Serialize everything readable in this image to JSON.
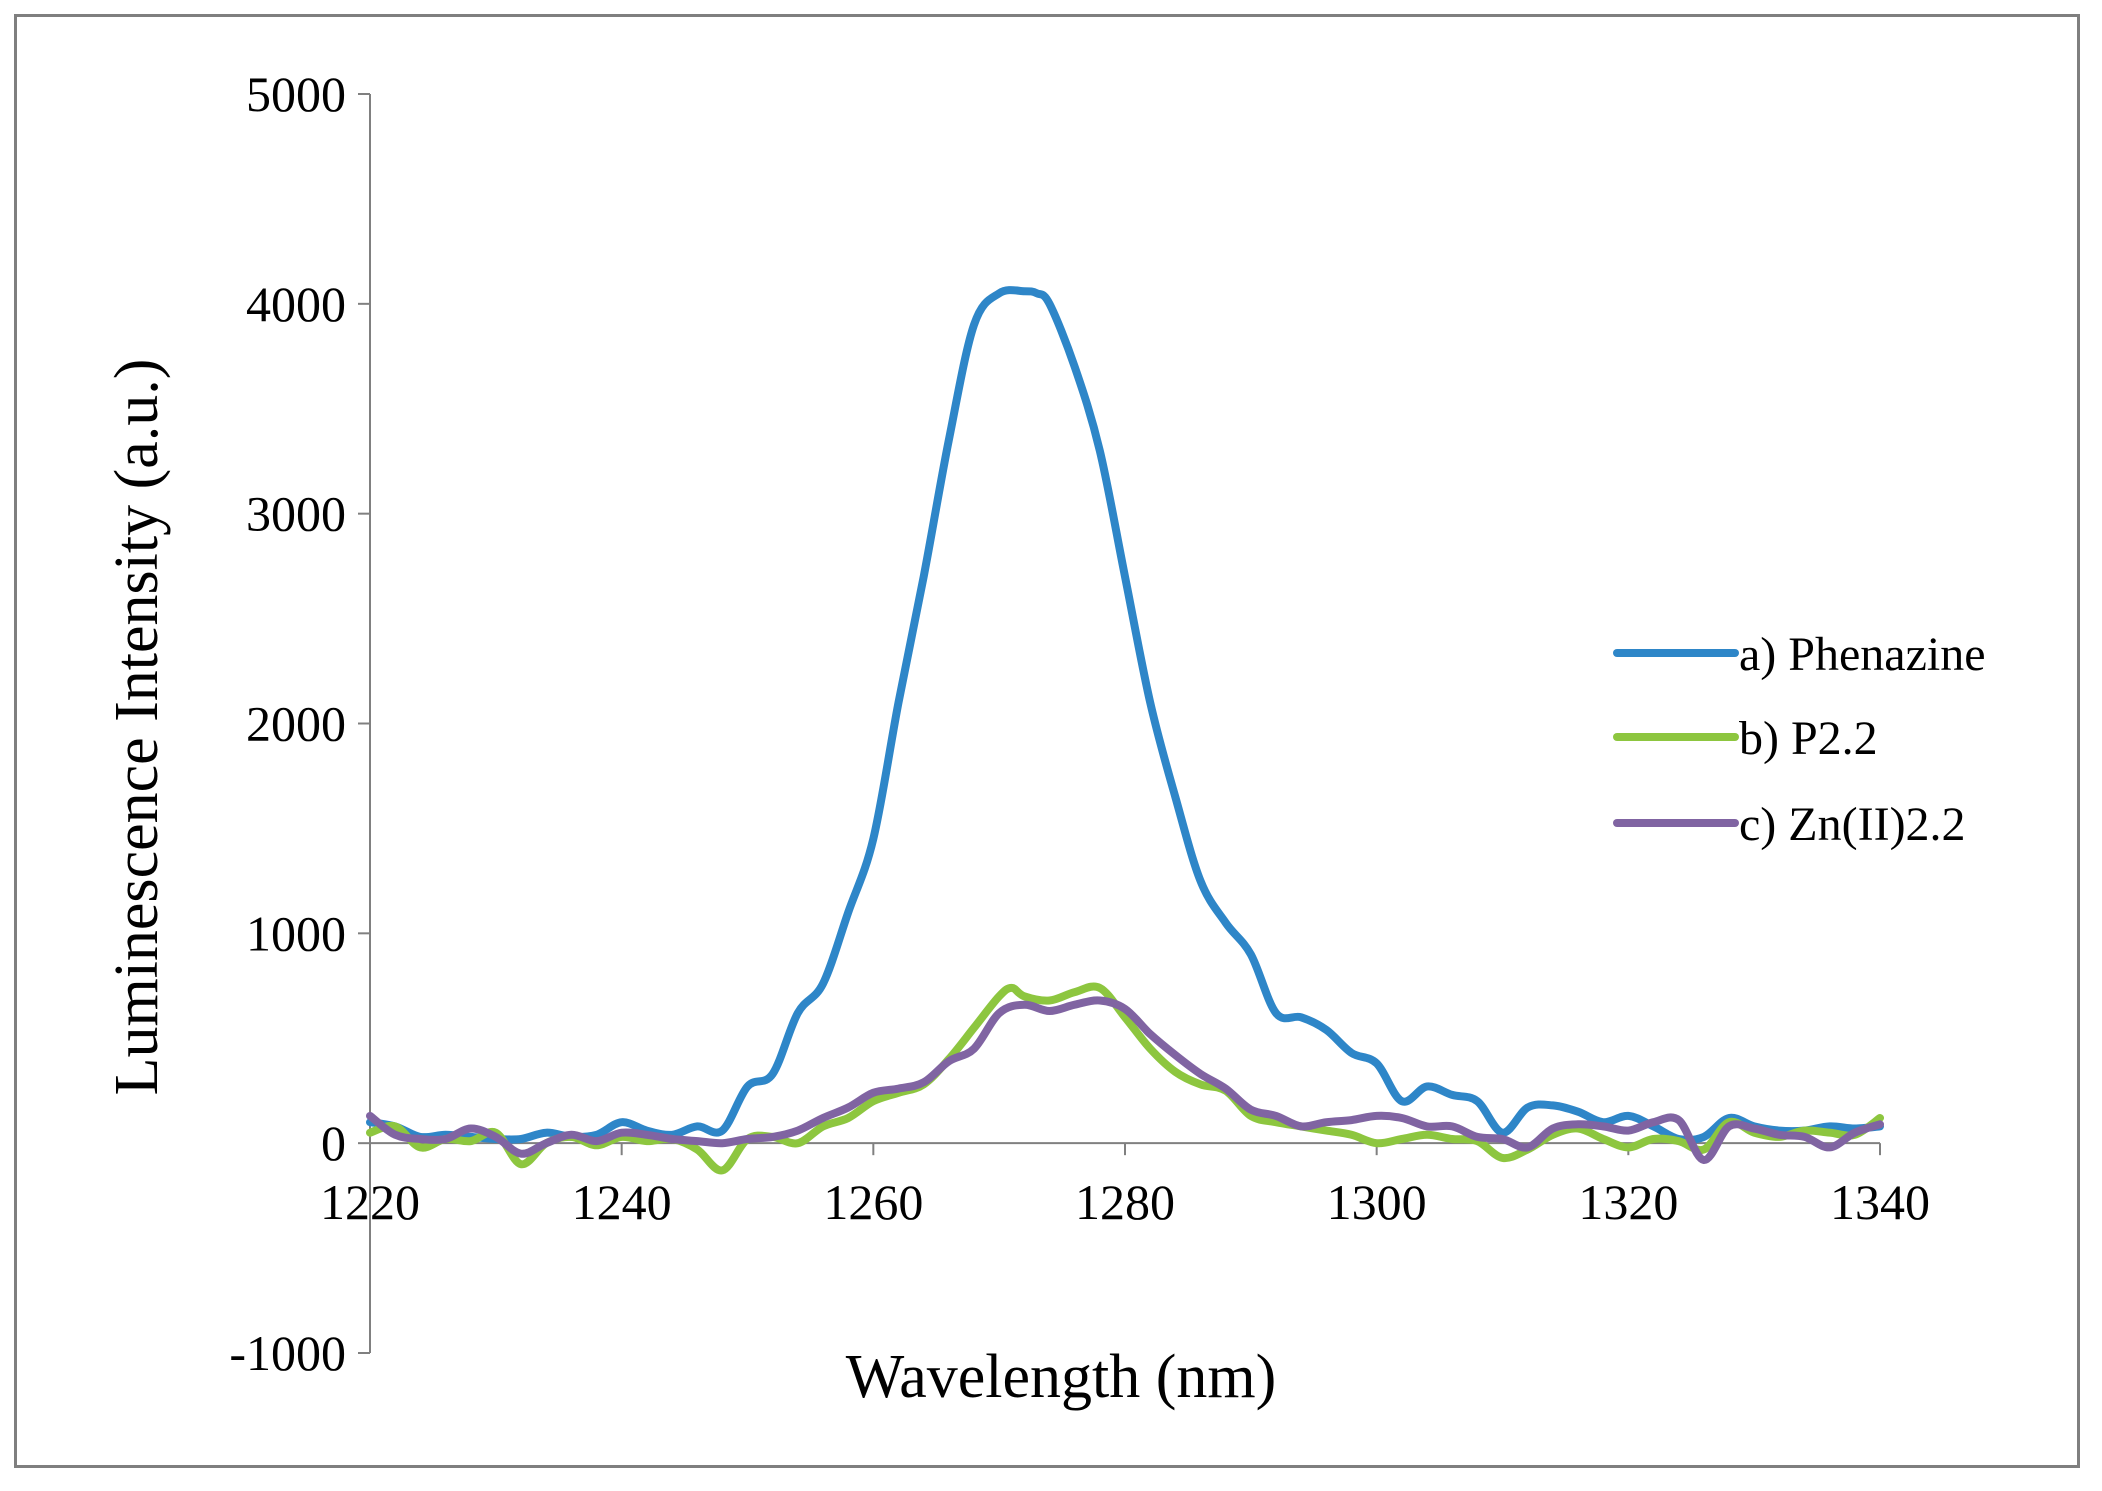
{
  "chart_data": {
    "type": "line",
    "title": "",
    "xlabel": "Wavelength (nm)",
    "ylabel": "Luminescence Intensity (a.u.)",
    "xlim": [
      1220,
      1340
    ],
    "ylim": [
      -1000,
      5000
    ],
    "xticks": [
      1220,
      1240,
      1260,
      1280,
      1300,
      1320,
      1340
    ],
    "yticks": [
      -1000,
      0,
      1000,
      2000,
      3000,
      4000,
      5000
    ],
    "xtick_labels": [
      "1220",
      "1240",
      "1260",
      "1280",
      "1300",
      "1320",
      "1340"
    ],
    "ytick_labels": [
      "-1000",
      "0",
      "1000",
      "2000",
      "3000",
      "4000",
      "5000"
    ],
    "legend_position": "right",
    "grid": false,
    "series": [
      {
        "name": "a) Phenazine",
        "color": "#2e86c8",
        "x": [
          1220,
          1222,
          1224,
          1226,
          1228,
          1230,
          1232,
          1234,
          1236,
          1238,
          1240,
          1242,
          1244,
          1246,
          1248,
          1250,
          1252,
          1254,
          1256,
          1258,
          1260,
          1262,
          1264,
          1266,
          1268,
          1270,
          1272,
          1273,
          1274,
          1276,
          1278,
          1280,
          1282,
          1284,
          1286,
          1288,
          1290,
          1292,
          1294,
          1296,
          1298,
          1300,
          1302,
          1304,
          1306,
          1308,
          1310,
          1312,
          1314,
          1316,
          1318,
          1320,
          1322,
          1324,
          1326,
          1328,
          1330,
          1332,
          1334,
          1336,
          1338,
          1340
        ],
        "values": [
          100,
          80,
          30,
          40,
          30,
          20,
          20,
          50,
          30,
          40,
          100,
          60,
          40,
          80,
          60,
          270,
          330,
          620,
          760,
          1100,
          1450,
          2100,
          2700,
          3350,
          3900,
          4050,
          4060,
          4050,
          4000,
          3700,
          3300,
          2700,
          2100,
          1650,
          1250,
          1050,
          900,
          620,
          600,
          540,
          430,
          380,
          200,
          270,
          230,
          200,
          50,
          170,
          180,
          150,
          100,
          130,
          80,
          20,
          30,
          120,
          80,
          60,
          60,
          80,
          70,
          80
        ]
      },
      {
        "name": "b) P2.2",
        "color": "#8dc63f",
        "x": [
          1220,
          1222,
          1224,
          1226,
          1228,
          1230,
          1232,
          1234,
          1236,
          1238,
          1240,
          1242,
          1244,
          1246,
          1248,
          1250,
          1252,
          1254,
          1256,
          1258,
          1260,
          1262,
          1264,
          1266,
          1268,
          1270,
          1271,
          1272,
          1274,
          1276,
          1278,
          1280,
          1282,
          1284,
          1286,
          1288,
          1290,
          1292,
          1294,
          1296,
          1298,
          1300,
          1302,
          1304,
          1306,
          1308,
          1310,
          1312,
          1314,
          1316,
          1318,
          1320,
          1322,
          1324,
          1326,
          1328,
          1330,
          1332,
          1334,
          1336,
          1338,
          1340
        ],
        "values": [
          50,
          80,
          -20,
          20,
          10,
          50,
          -100,
          0,
          30,
          -10,
          30,
          10,
          20,
          -30,
          -130,
          20,
          30,
          0,
          80,
          120,
          200,
          240,
          280,
          400,
          550,
          700,
          740,
          700,
          680,
          720,
          740,
          600,
          450,
          340,
          280,
          250,
          130,
          100,
          80,
          60,
          40,
          0,
          20,
          40,
          20,
          10,
          -70,
          -30,
          40,
          70,
          20,
          -20,
          20,
          10,
          -30,
          100,
          50,
          30,
          60,
          50,
          40,
          120
        ]
      },
      {
        "name": "c) Zn(II)2.2",
        "color": "#8064a2",
        "x": [
          1220,
          1222,
          1224,
          1226,
          1228,
          1230,
          1232,
          1234,
          1236,
          1238,
          1240,
          1242,
          1244,
          1246,
          1248,
          1250,
          1252,
          1254,
          1256,
          1258,
          1260,
          1262,
          1264,
          1266,
          1268,
          1270,
          1272,
          1274,
          1276,
          1278,
          1280,
          1282,
          1284,
          1286,
          1288,
          1290,
          1292,
          1294,
          1296,
          1298,
          1300,
          1302,
          1304,
          1306,
          1308,
          1310,
          1312,
          1314,
          1316,
          1318,
          1320,
          1322,
          1324,
          1326,
          1328,
          1330,
          1332,
          1334,
          1336,
          1338,
          1340
        ],
        "values": [
          130,
          40,
          20,
          20,
          70,
          30,
          -50,
          0,
          40,
          10,
          50,
          40,
          20,
          10,
          0,
          20,
          30,
          60,
          120,
          170,
          240,
          260,
          290,
          390,
          450,
          620,
          660,
          630,
          660,
          680,
          640,
          520,
          420,
          330,
          260,
          160,
          130,
          80,
          100,
          110,
          130,
          120,
          80,
          80,
          30,
          20,
          -20,
          70,
          90,
          80,
          60,
          100,
          110,
          -80,
          80,
          70,
          40,
          30,
          -20,
          50,
          90
        ]
      }
    ]
  }
}
